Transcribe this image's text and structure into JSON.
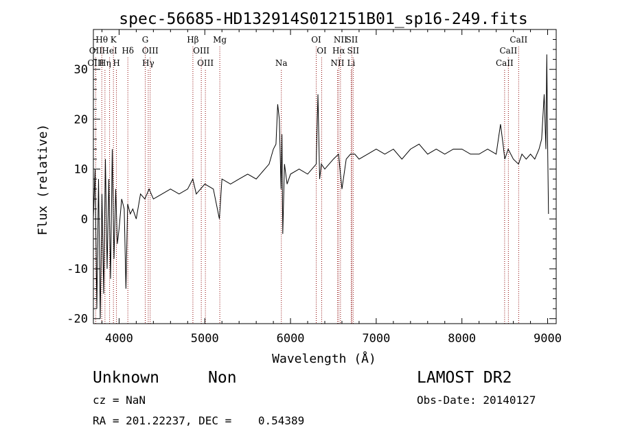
{
  "chart_data": {
    "type": "line",
    "title": "spec-56685-HD132914S012151B01_sp16-249.fits",
    "xlabel": "Wavelength (Å)",
    "ylabel": "Flux (relative)",
    "xlim": [
      3700,
      9100
    ],
    "ylim": [
      -21,
      38
    ],
    "x_ticks": [
      4000,
      5000,
      6000,
      7000,
      8000,
      9000
    ],
    "y_ticks": [
      -20,
      -10,
      0,
      10,
      20,
      30
    ],
    "grid": false,
    "line_color": "#000000",
    "marker_color": "#8b0000",
    "series": [
      {
        "x": [
          3700,
          3720,
          3740,
          3760,
          3780,
          3800,
          3820,
          3840,
          3860,
          3880,
          3900,
          3920,
          3940,
          3960,
          3980,
          4000,
          4030,
          4060,
          4080,
          4100,
          4130,
          4160,
          4200,
          4250,
          4300,
          4350,
          4400,
          4500,
          4600,
          4700,
          4800,
          4860,
          4900,
          5000,
          5100,
          5170,
          5200,
          5300,
          5400,
          5500,
          5600,
          5700,
          5750,
          5800,
          5830,
          5850,
          5870,
          5890,
          5900,
          5910,
          5930,
          5960,
          6000,
          6100,
          6200,
          6300,
          6320,
          6340,
          6360,
          6400,
          6500,
          6560,
          6600,
          6650,
          6700,
          6750,
          6800,
          6900,
          7000,
          7100,
          7200,
          7300,
          7400,
          7500,
          7600,
          7700,
          7800,
          7900,
          8000,
          8100,
          8200,
          8300,
          8400,
          8450,
          8480,
          8500,
          8540,
          8600,
          8660,
          8700,
          8750,
          8800,
          8850,
          8900,
          8930,
          8960,
          8980,
          8990,
          9000,
          9010
        ],
        "y": [
          0,
          10,
          -18,
          8,
          -20,
          5,
          -15,
          12,
          -10,
          8,
          -12,
          14,
          -8,
          6,
          -5,
          -2,
          4,
          2,
          -14,
          3,
          1,
          2,
          0,
          5,
          4,
          6,
          4,
          5,
          6,
          5,
          6,
          8,
          5,
          7,
          6,
          0,
          8,
          7,
          8,
          9,
          8,
          10,
          11,
          14,
          15,
          23,
          20,
          6,
          17,
          -3,
          11,
          7,
          9,
          10,
          9,
          11,
          25,
          8,
          11,
          10,
          12,
          13,
          6,
          12,
          13,
          13,
          12,
          13,
          14,
          13,
          14,
          12,
          14,
          15,
          13,
          14,
          13,
          14,
          14,
          13,
          13,
          14,
          13,
          19,
          15,
          12,
          14,
          12,
          11,
          13,
          12,
          13,
          12,
          14,
          16,
          25,
          14,
          33,
          15,
          1
        ]
      }
    ],
    "line_markers": [
      {
        "label": "Hθ",
        "x": 3798,
        "row": 1
      },
      {
        "label": "K",
        "x": 3934,
        "row": 1
      },
      {
        "label": "G",
        "x": 4305,
        "row": 1
      },
      {
        "label": "Hβ",
        "x": 4861,
        "row": 1
      },
      {
        "label": "Mg",
        "x": 5175,
        "row": 1
      },
      {
        "label": "OI",
        "x": 6300,
        "row": 1
      },
      {
        "label": "NII",
        "x": 6583,
        "row": 1
      },
      {
        "label": "SII",
        "x": 6716,
        "row": 1
      },
      {
        "label": "CaII",
        "x": 8662,
        "row": 1
      },
      {
        "label": "OII",
        "x": 3727,
        "row": 2
      },
      {
        "label": "HeI",
        "x": 3889,
        "row": 2
      },
      {
        "label": "Hδ",
        "x": 4102,
        "row": 2
      },
      {
        "label": "OIII",
        "x": 4363,
        "row": 2
      },
      {
        "label": "OIII",
        "x": 4959,
        "row": 2
      },
      {
        "label": "OI",
        "x": 6364,
        "row": 2
      },
      {
        "label": "Hα",
        "x": 6563,
        "row": 2
      },
      {
        "label": "SII",
        "x": 6731,
        "row": 2
      },
      {
        "label": "CaII",
        "x": 8542,
        "row": 2
      },
      {
        "label": "OIII",
        "x": 3727,
        "row": 3
      },
      {
        "label": "Hη",
        "x": 3835,
        "row": 3
      },
      {
        "label": "H",
        "x": 3969,
        "row": 3
      },
      {
        "label": "Hγ",
        "x": 4340,
        "row": 3
      },
      {
        "label": "OIII",
        "x": 5007,
        "row": 3
      },
      {
        "label": "Na",
        "x": 5893,
        "row": 3
      },
      {
        "label": "NII",
        "x": 6548,
        "row": 3
      },
      {
        "label": "Li",
        "x": 6708,
        "row": 3
      },
      {
        "label": "CaII",
        "x": 8498,
        "row": 3
      }
    ]
  },
  "info": {
    "classification": "Unknown",
    "subclass": "Non",
    "survey": "LAMOST DR2",
    "cz": "cz = NaN",
    "obs_date": "Obs-Date: 20140127",
    "coords": "RA = 201.22237, DEC =    0.54389"
  }
}
